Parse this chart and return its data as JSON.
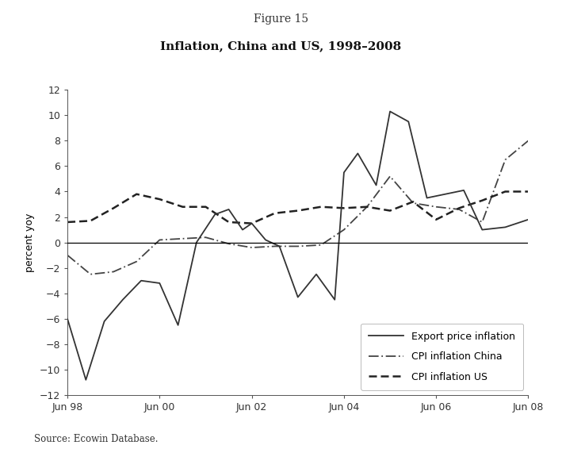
{
  "figure_label": "Figure 15",
  "title": "Inflation, China and US, 1998–2008",
  "ylabel": "percent yoy",
  "source": "Source: Ecowin Database.",
  "xtick_labels": [
    "Jun 98",
    "Jun 00",
    "Jun 02",
    "Jun 04",
    "Jun 06",
    "Jun 08"
  ],
  "xtick_positions": [
    0,
    2,
    4,
    6,
    8,
    10
  ],
  "ylim": [
    -12,
    12
  ],
  "yticks": [
    -12,
    -10,
    -8,
    -6,
    -4,
    -2,
    0,
    2,
    4,
    6,
    8,
    10,
    12
  ],
  "background_color": "#ffffff",
  "axes_bg": "#f5f5f5",
  "export_price": {
    "label": "Export price inflation",
    "color": "#333333",
    "linewidth": 1.3,
    "x": [
      0,
      0.4,
      0.8,
      1.2,
      1.6,
      2.0,
      2.4,
      2.8,
      3.2,
      3.5,
      3.8,
      4.0,
      4.3,
      4.6,
      5.0,
      5.4,
      5.8,
      6.0,
      6.3,
      6.7,
      7.0,
      7.4,
      7.8,
      8.2,
      8.6,
      9.0,
      9.5,
      10.0
    ],
    "y": [
      -6.0,
      -10.8,
      -6.2,
      -4.5,
      -3.0,
      -3.2,
      -6.5,
      0.0,
      2.2,
      2.6,
      1.0,
      1.5,
      0.2,
      -0.3,
      -4.3,
      -2.5,
      -4.5,
      5.5,
      7.0,
      4.5,
      10.3,
      9.5,
      3.5,
      3.8,
      4.1,
      1.0,
      1.2,
      1.8
    ]
  },
  "cpi_china": {
    "label": "CPI inflation China",
    "color": "#444444",
    "linewidth": 1.3,
    "x": [
      0,
      0.5,
      1.0,
      1.5,
      2.0,
      2.5,
      3.0,
      3.5,
      4.0,
      4.5,
      5.0,
      5.5,
      6.0,
      6.5,
      7.0,
      7.5,
      8.0,
      8.5,
      9.0,
      9.5,
      10.0
    ],
    "y": [
      -1.0,
      -2.5,
      -2.3,
      -1.5,
      0.2,
      0.3,
      0.4,
      -0.1,
      -0.4,
      -0.3,
      -0.3,
      -0.2,
      1.0,
      2.8,
      5.2,
      3.1,
      2.8,
      2.6,
      1.6,
      6.5,
      8.0
    ]
  },
  "cpi_us": {
    "label": "CPI inflation US",
    "color": "#222222",
    "linewidth": 1.8,
    "x": [
      0,
      0.5,
      1.0,
      1.5,
      2.0,
      2.5,
      3.0,
      3.5,
      4.0,
      4.5,
      5.0,
      5.5,
      6.0,
      6.5,
      7.0,
      7.5,
      8.0,
      8.5,
      9.0,
      9.5,
      10.0
    ],
    "y": [
      1.6,
      1.7,
      2.7,
      3.8,
      3.4,
      2.8,
      2.8,
      1.6,
      1.5,
      2.3,
      2.5,
      2.8,
      2.7,
      2.8,
      2.5,
      3.2,
      1.8,
      2.7,
      3.3,
      4.0,
      4.0
    ]
  }
}
